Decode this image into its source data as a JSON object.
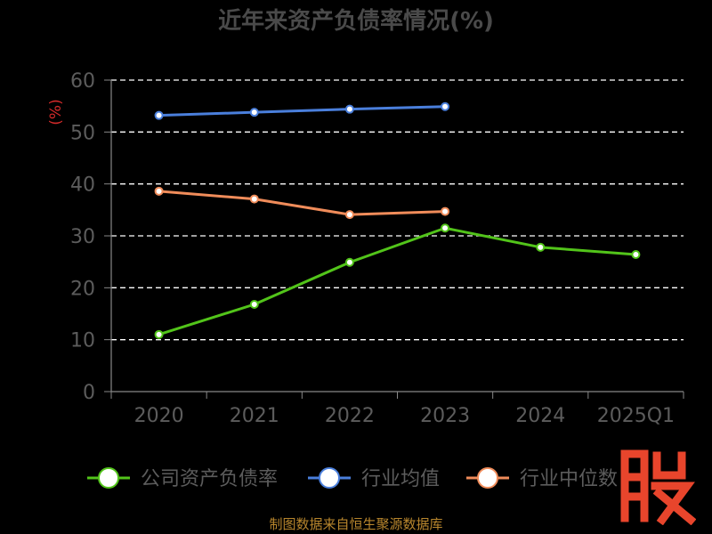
{
  "page": {
    "source_note": "制图数据来自恒生聚源数据库",
    "watermark_char": "股"
  },
  "chart_data": {
    "type": "line",
    "title": "近年来资产负债率情况(%)",
    "ylabel": "(%)",
    "xlabel": "",
    "categories": [
      "2020",
      "2021",
      "2022",
      "2023",
      "2024",
      "2025Q1"
    ],
    "ylim": [
      0,
      60
    ],
    "yticks": [
      0,
      10,
      20,
      30,
      40,
      50,
      60
    ],
    "grid": true,
    "legend_position": "bottom",
    "series": [
      {
        "name": "公司资产负债率",
        "color": "#52c41a",
        "values": [
          11.0,
          16.8,
          24.9,
          31.5,
          27.8,
          26.4
        ]
      },
      {
        "name": "行业均值",
        "color": "#4a7fdc",
        "values": [
          53.2,
          53.8,
          54.4,
          54.9,
          null,
          null
        ]
      },
      {
        "name": "行业中位数",
        "color": "#f08c5a",
        "values": [
          38.6,
          37.1,
          34.1,
          34.7,
          null,
          null
        ]
      }
    ]
  }
}
